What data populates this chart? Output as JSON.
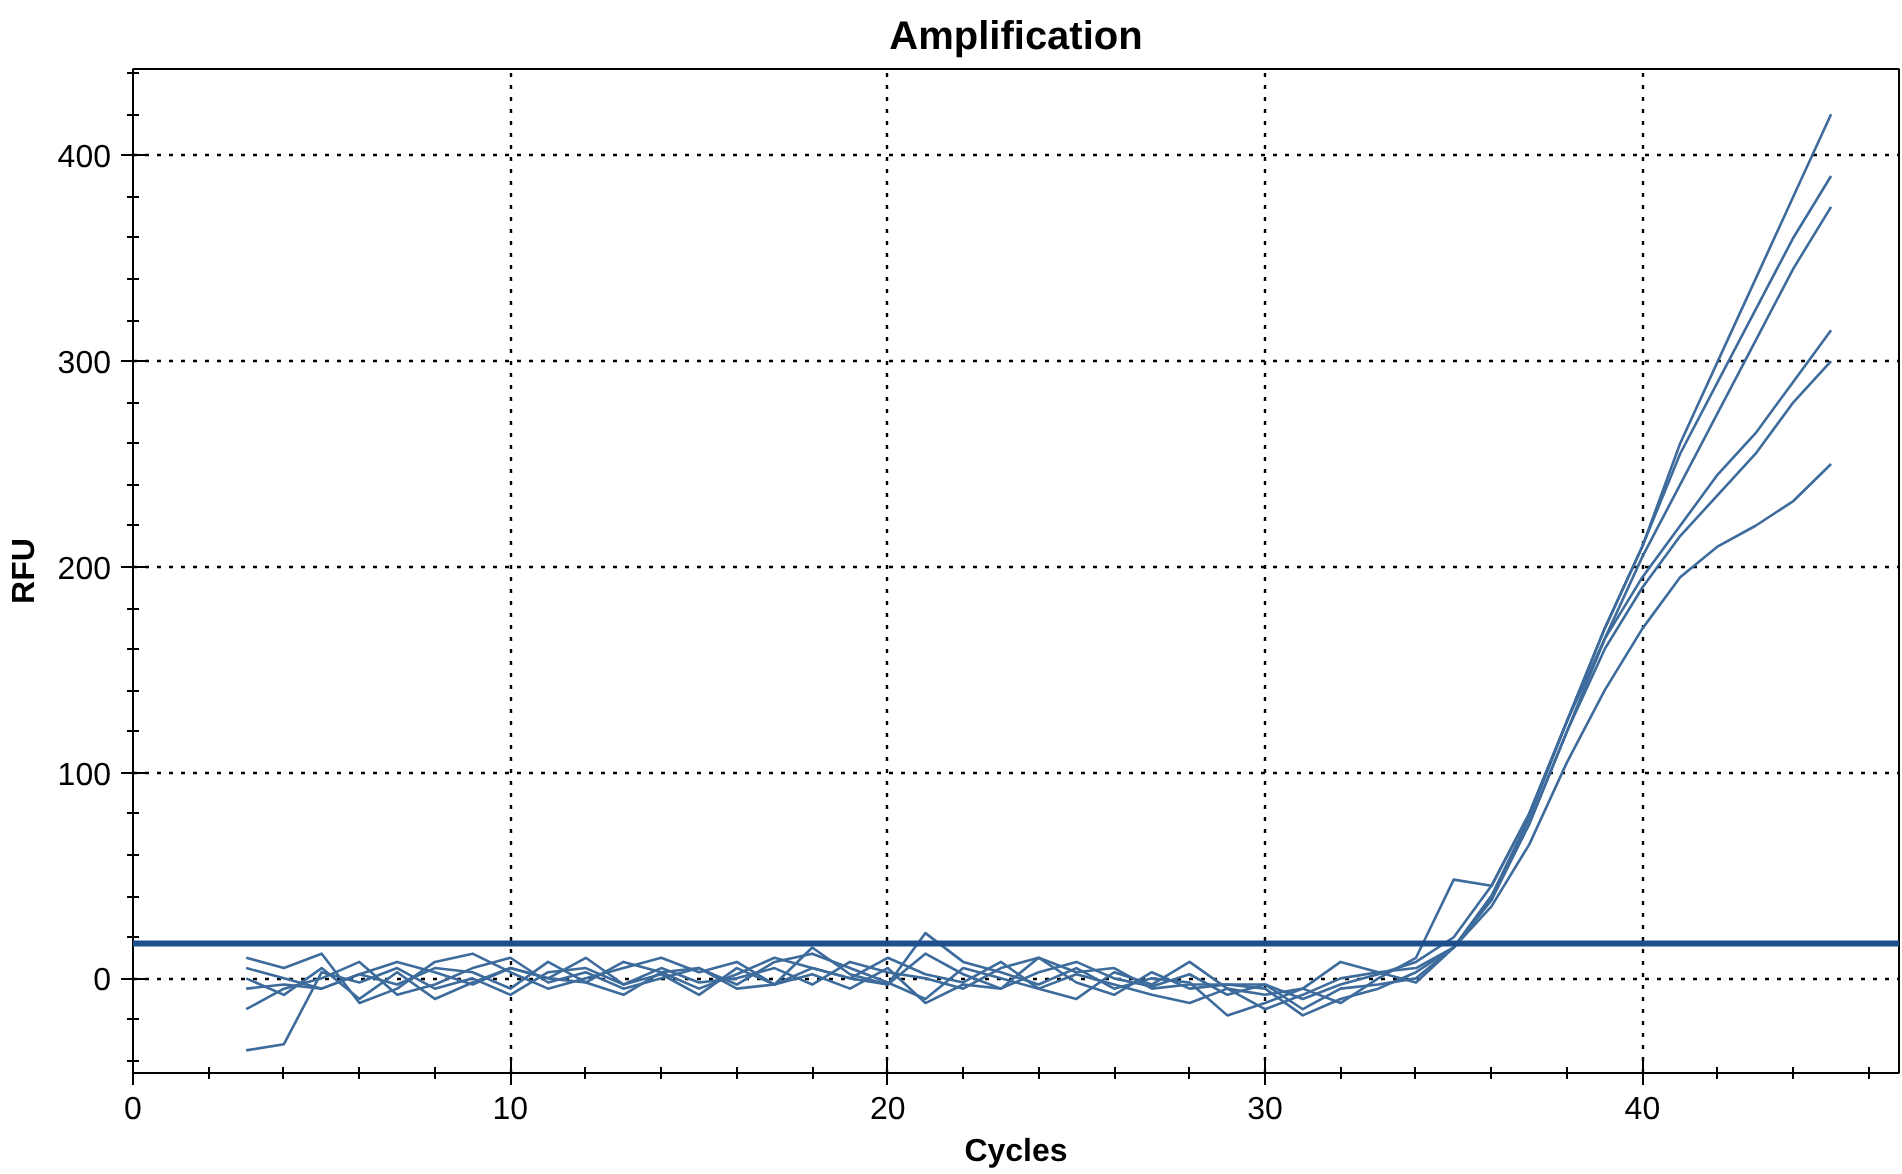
{
  "chart_data": {
    "type": "line",
    "title": "Amplification",
    "xlabel": "Cycles",
    "ylabel": "RFU",
    "x": [
      3,
      4,
      5,
      6,
      7,
      8,
      9,
      10,
      11,
      12,
      13,
      14,
      15,
      16,
      17,
      18,
      19,
      20,
      21,
      22,
      23,
      24,
      25,
      26,
      27,
      28,
      29,
      30,
      31,
      32,
      33,
      34,
      35,
      36,
      37,
      38,
      39,
      40,
      41,
      42,
      43,
      44,
      45
    ],
    "series": [
      {
        "color": "#3d6b9c",
        "values": [
          5,
          0,
          -5,
          2,
          8,
          3,
          -3,
          5,
          0,
          -2,
          8,
          3,
          -5,
          2,
          10,
          5,
          0,
          -3,
          12,
          2,
          -5,
          3,
          8,
          0,
          -4,
          2,
          -8,
          -3,
          -10,
          -3,
          2,
          8,
          20,
          45,
          80,
          125,
          170,
          210,
          260,
          300,
          340,
          380,
          420
        ]
      },
      {
        "color": "#3d6b9c",
        "values": [
          -15,
          -5,
          0,
          8,
          -8,
          -3,
          5,
          10,
          -2,
          3,
          -5,
          0,
          5,
          -3,
          8,
          12,
          5,
          -2,
          -10,
          5,
          0,
          -5,
          2,
          -3,
          -8,
          -12,
          -5,
          -15,
          -8,
          0,
          3,
          5,
          15,
          40,
          78,
          125,
          170,
          210,
          255,
          290,
          325,
          360,
          390
        ]
      },
      {
        "color": "#3d6b9c",
        "values": [
          -35,
          -32,
          3,
          -2,
          5,
          -5,
          0,
          -8,
          3,
          5,
          -3,
          5,
          -2,
          0,
          5,
          -3,
          8,
          3,
          0,
          -5,
          5,
          10,
          -2,
          -8,
          3,
          -5,
          -3,
          -5,
          -18,
          -10,
          -5,
          3,
          15,
          38,
          75,
          120,
          165,
          205,
          240,
          275,
          310,
          345,
          375
        ]
      },
      {
        "color": "#3d6b9c",
        "values": [
          10,
          5,
          12,
          -12,
          -5,
          8,
          12,
          3,
          -5,
          0,
          5,
          10,
          3,
          8,
          -3,
          15,
          2,
          -3,
          22,
          8,
          3,
          -3,
          5,
          -5,
          0,
          -2,
          -18,
          -12,
          -5,
          -12,
          0,
          10,
          48,
          45,
          80,
          125,
          165,
          195,
          220,
          245,
          265,
          290,
          315
        ]
      },
      {
        "color": "#3d6b9c",
        "values": [
          0,
          -8,
          5,
          -10,
          3,
          -10,
          -2,
          5,
          0,
          10,
          -3,
          2,
          -8,
          5,
          -3,
          5,
          0,
          10,
          2,
          -2,
          8,
          -5,
          -10,
          3,
          -3,
          8,
          -5,
          -8,
          -5,
          8,
          3,
          -2,
          15,
          40,
          75,
          120,
          160,
          190,
          215,
          235,
          255,
          280,
          300
        ]
      },
      {
        "color": "#3d6b9c",
        "values": [
          -5,
          -3,
          -5,
          2,
          -3,
          5,
          3,
          -5,
          8,
          -2,
          -8,
          3,
          5,
          -5,
          -3,
          2,
          -5,
          5,
          -12,
          -3,
          -5,
          10,
          3,
          5,
          -5,
          -3,
          -3,
          -3,
          -15,
          -5,
          -3,
          0,
          15,
          35,
          65,
          105,
          140,
          170,
          195,
          210,
          220,
          232,
          250
        ]
      }
    ],
    "ref_lines": [
      {
        "axis": "y",
        "value": 17,
        "color": "#1f4e8c"
      }
    ],
    "xlim": [
      0,
      46.8
    ],
    "ylim": [
      -46,
      442
    ],
    "xticks": [
      0,
      10,
      20,
      30,
      40
    ],
    "yticks": [
      0,
      100,
      200,
      300,
      400
    ],
    "grid": true,
    "marker": "none",
    "line_style": "solid"
  }
}
